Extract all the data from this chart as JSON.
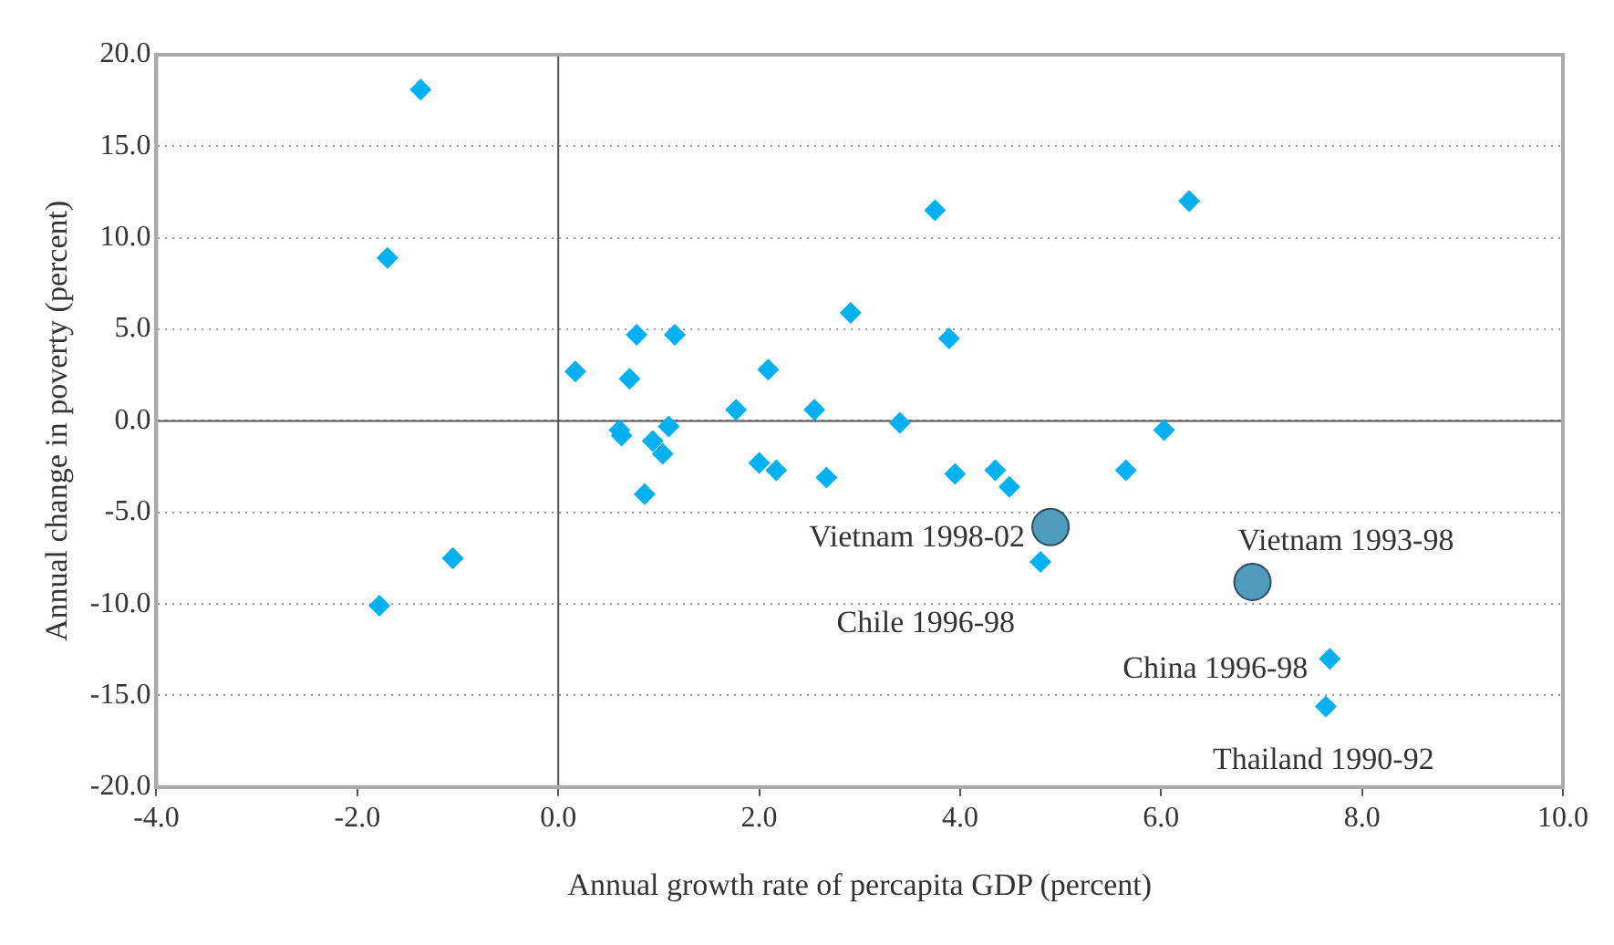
{
  "chart_data": {
    "type": "scatter",
    "xlabel": "Annual growth rate of percapita GDP (percent)",
    "ylabel": "Annual change in poverty (percent)",
    "series": [
      {
        "color": "#00b0f0",
        "marker": "diamond",
        "x": [
          -1.37,
          -1.7,
          -1.05,
          -1.78,
          0.17,
          0.78,
          1.16,
          0.71,
          0.61,
          0.63,
          1.1,
          0.94,
          1.04,
          0.86,
          1.77,
          2.09,
          2.55,
          2.0,
          2.17,
          2.67,
          2.91,
          3.75,
          3.89,
          3.4,
          3.95,
          4.35,
          4.49,
          4.8,
          5.65,
          6.03,
          6.28,
          7.68,
          7.64
        ],
        "values": [
          18.1,
          8.9,
          -7.5,
          -10.1,
          2.7,
          4.7,
          4.7,
          2.3,
          -0.5,
          -0.8,
          -0.3,
          -1.1,
          -1.8,
          -4.0,
          0.6,
          2.8,
          0.6,
          -2.3,
          -2.7,
          -3.1,
          5.9,
          11.5,
          4.5,
          -0.1,
          -2.9,
          -2.7,
          -3.6,
          -7.7,
          -2.7,
          -0.5,
          12.0,
          -13.0,
          -15.6
        ]
      },
      {
        "color": "#4f9bbb",
        "marker": "circle",
        "x": [
          4.9,
          6.91
        ],
        "values": [
          -5.8,
          -8.8
        ]
      }
    ],
    "annotations": [
      {
        "text": "Vietnam 1998-02",
        "x": 4.9,
        "y": -5.8
      },
      {
        "text": "Vietnam 1993-98",
        "x": 6.91,
        "y": -8.8
      },
      {
        "text": "Chile 1996-98",
        "x": 4.8,
        "y": -7.7
      },
      {
        "text": "China 1996-98",
        "x": 7.68,
        "y": -13.0
      },
      {
        "text": "Thailand 1990-92",
        "x": 7.64,
        "y": -15.6
      }
    ],
    "xlim": [
      -4,
      10
    ],
    "xticks": [
      {
        "value": -4,
        "label": "-4.0"
      },
      {
        "value": -2,
        "label": "-2.0"
      },
      {
        "value": 0,
        "label": "0.0"
      },
      {
        "value": 2,
        "label": "2.0"
      },
      {
        "value": 4,
        "label": "4.0"
      },
      {
        "value": 6,
        "label": "6.0"
      },
      {
        "value": 8,
        "label": "8.0"
      },
      {
        "value": 10,
        "label": "10.0"
      }
    ],
    "ylim": [
      -20,
      20
    ],
    "yticks": [
      {
        "value": -20,
        "label": "-20.0"
      },
      {
        "value": -15,
        "label": "-15.0"
      },
      {
        "value": -10,
        "label": "-10.0"
      },
      {
        "value": -5,
        "label": "-5.0"
      },
      {
        "value": 0,
        "label": "0.0"
      },
      {
        "value": 5,
        "label": "5.0"
      },
      {
        "value": 10,
        "label": "10.0"
      },
      {
        "value": 15,
        "label": "15.0"
      },
      {
        "value": 20,
        "label": "20.0"
      }
    ],
    "ref_lines": [
      {
        "axis": "x",
        "value": 0
      }
    ],
    "grid": "y",
    "legend": false
  }
}
